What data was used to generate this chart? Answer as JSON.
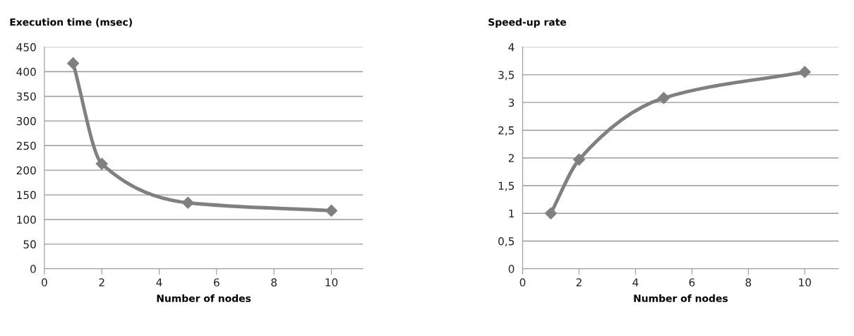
{
  "chart_data": [
    {
      "type": "line",
      "title": "Execution time (msec)",
      "xlabel": "Number of nodes",
      "x": [
        1,
        2,
        5,
        10
      ],
      "series": [
        {
          "color": "#808080",
          "values": [
            417,
            213,
            134,
            118
          ]
        }
      ],
      "xlim": [
        0,
        11.1
      ],
      "xticks": [
        0,
        2,
        4,
        6,
        8,
        10
      ],
      "ylim": [
        0,
        450
      ],
      "yticks": [
        0,
        50,
        100,
        150,
        200,
        250,
        300,
        350,
        400,
        450
      ],
      "grid": "y",
      "marker": "diamond",
      "line_style": "solid"
    },
    {
      "type": "line",
      "title": "Speed-up rate",
      "xlabel": "Number of nodes",
      "x": [
        1,
        2,
        5,
        10
      ],
      "series": [
        {
          "color": "#808080",
          "values": [
            1.0,
            1.97,
            3.08,
            3.55
          ]
        }
      ],
      "xlim": [
        0,
        11.2
      ],
      "xticks": [
        0,
        2,
        4,
        6,
        8,
        10
      ],
      "ylim": [
        0,
        4
      ],
      "yticks": [
        0,
        {
          "value": 0.5,
          "label": "0,5"
        },
        1,
        {
          "value": 1.5,
          "label": "1,5"
        },
        2,
        {
          "value": 2.5,
          "label": "2,5"
        },
        3,
        {
          "value": 3.5,
          "label": "3,5"
        },
        4
      ],
      "grid": "y",
      "marker": "diamond",
      "line_style": "solid"
    }
  ]
}
